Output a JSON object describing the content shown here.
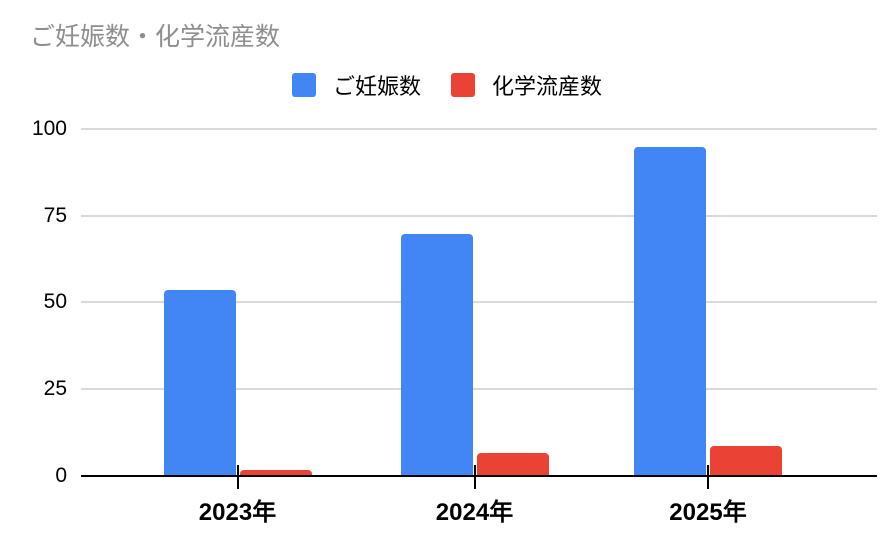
{
  "title": "ご妊娠数・化学流産数",
  "legend": {
    "items": [
      {
        "label": "ご妊娠数",
        "color": "#4285F4"
      },
      {
        "label": "化学流産数",
        "color": "#EA4335"
      }
    ]
  },
  "axes": {
    "y_tick_labels": [
      "0",
      "25",
      "50",
      "75",
      "100"
    ],
    "x_tick_labels": [
      "2023年",
      "2024年",
      "2025年"
    ]
  },
  "colors": {
    "series_pregnancies": "#4285F4",
    "series_chemical_miscarriages": "#EA4335",
    "title_text": "#8E8E8E",
    "gridline": "#D9D9D9",
    "axis_line": "#000000",
    "background": "#FFFFFF"
  },
  "chart_data": {
    "type": "bar",
    "title": "ご妊娠数・化学流産数",
    "categories": [
      "2023年",
      "2024年",
      "2025年"
    ],
    "series": [
      {
        "name": "ご妊娠数",
        "color": "#4285F4",
        "values": [
          54,
          70,
          95
        ]
      },
      {
        "name": "化学流産数",
        "color": "#EA4335",
        "values": [
          2,
          7,
          9
        ]
      }
    ],
    "xlabel": "",
    "ylabel": "",
    "ylim": [
      0,
      100
    ],
    "yticks": [
      0,
      25,
      50,
      75,
      100
    ],
    "grid": true,
    "legend_position": "top"
  }
}
